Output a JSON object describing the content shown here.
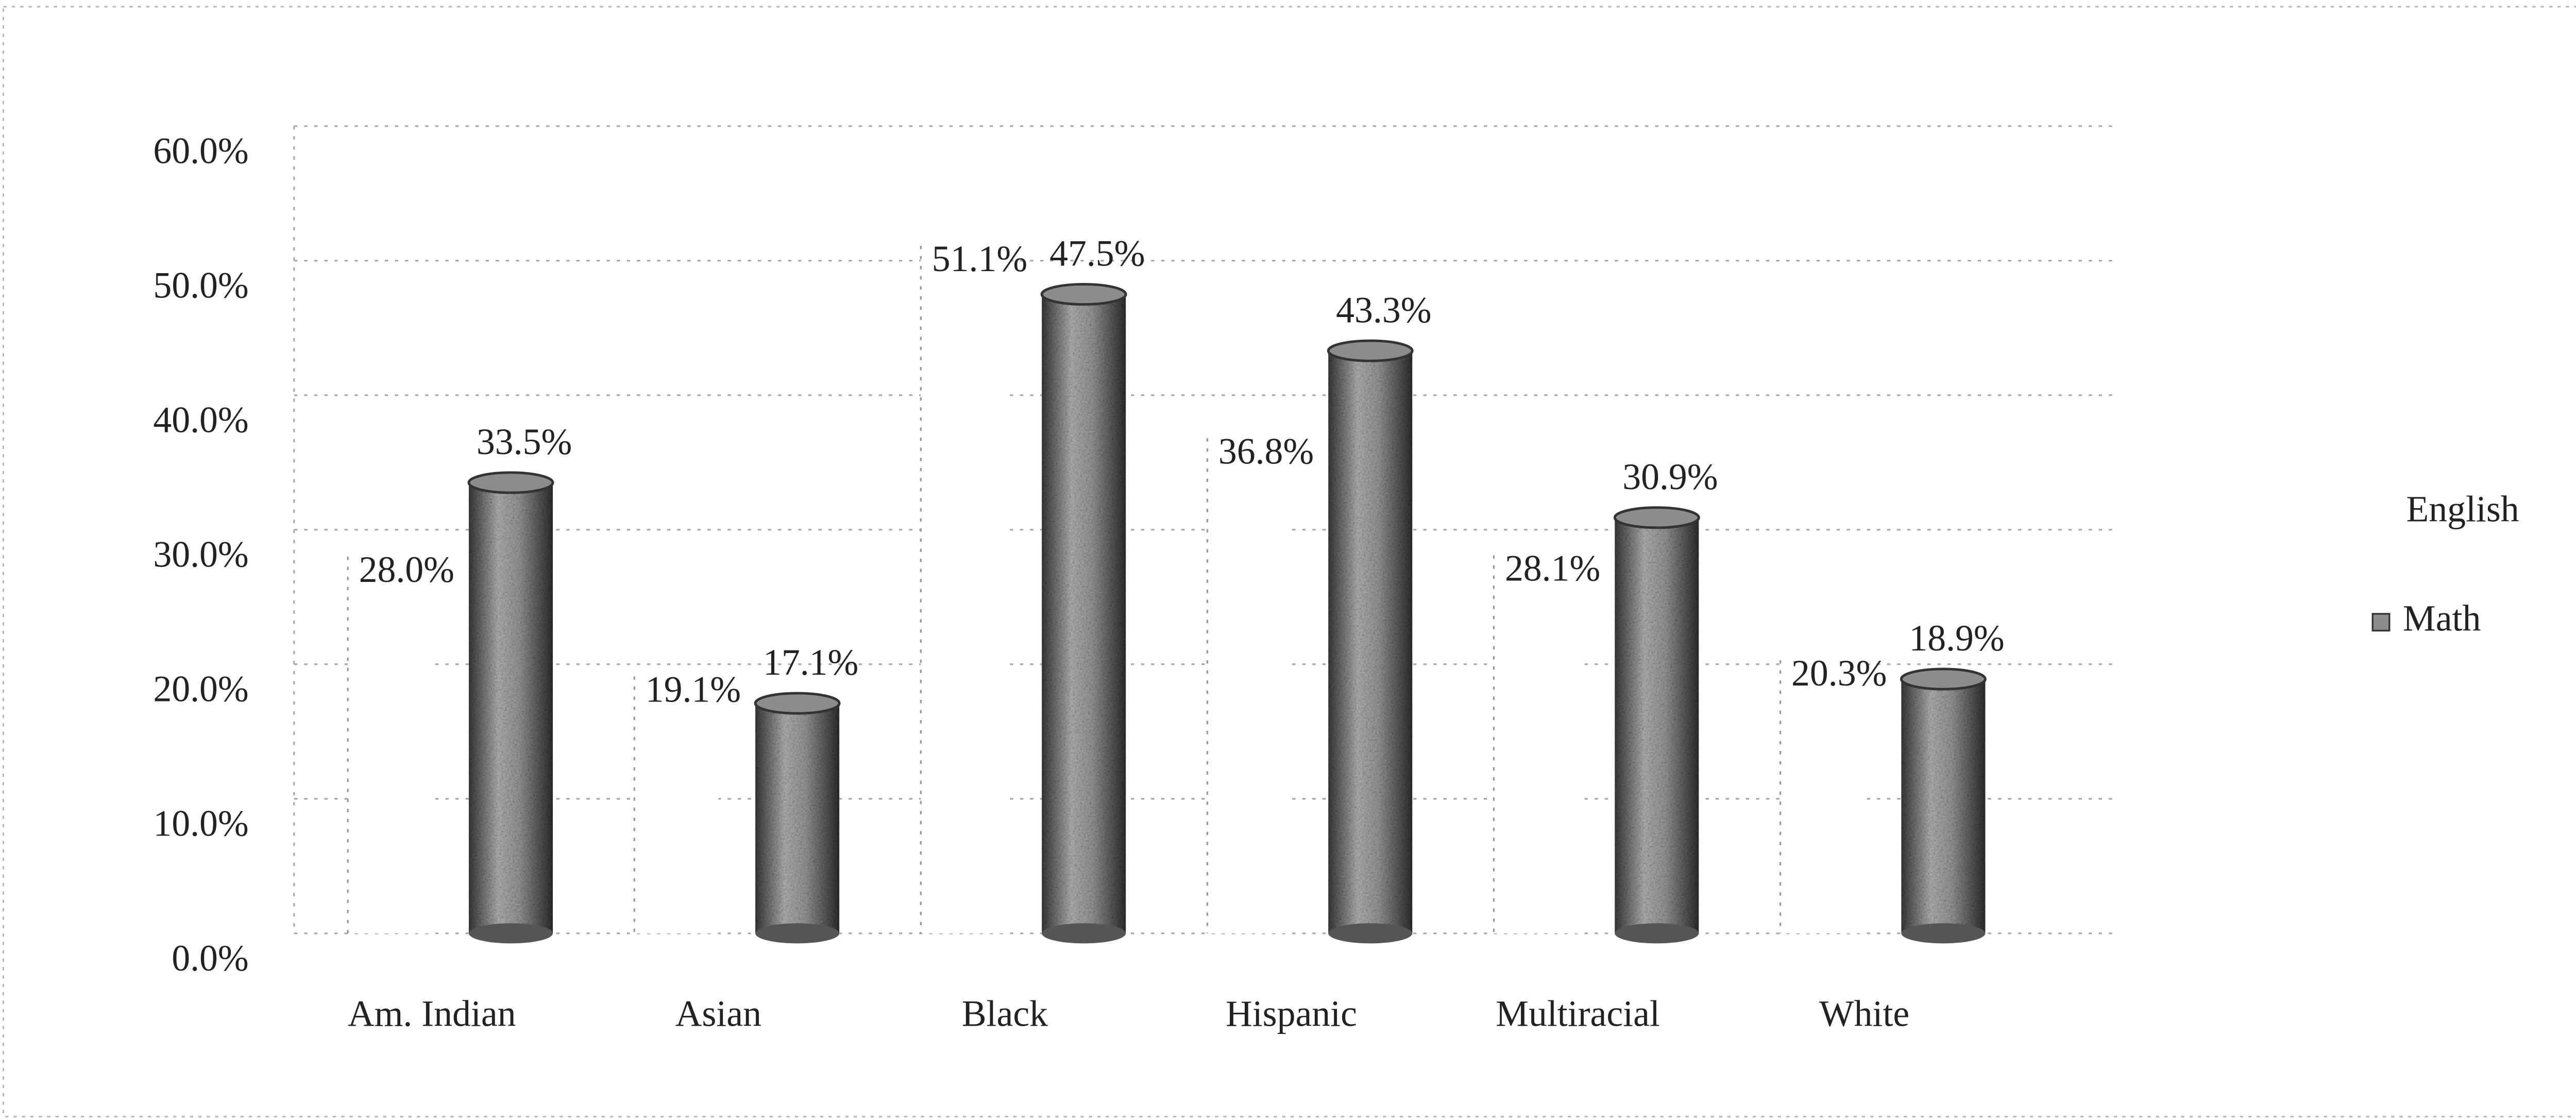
{
  "chart_data": {
    "type": "bar",
    "categories": [
      "Am. Indian",
      "Asian",
      "Black",
      "Hispanic",
      "Multiracial",
      "White"
    ],
    "series": [
      {
        "name": "English",
        "color": "#ffffff",
        "values": [
          28.0,
          19.1,
          51.1,
          36.8,
          28.1,
          20.3
        ],
        "value_labels": [
          "28.0%",
          "19.1%",
          "51.1%",
          "36.8%",
          "28.1%",
          "20.3%"
        ]
      },
      {
        "name": "Math",
        "color": "#8c8c8c",
        "values": [
          33.5,
          17.1,
          47.5,
          43.3,
          30.9,
          18.9
        ],
        "value_labels": [
          "33.5%",
          "17.1%",
          "47.5%",
          "43.3%",
          "30.9%",
          "18.9%"
        ]
      }
    ],
    "ylim": [
      0,
      60
    ],
    "yticks": [
      {
        "value": 0,
        "label": "0.0%"
      },
      {
        "value": 10,
        "label": "10.0%"
      },
      {
        "value": 20,
        "label": "20.0%"
      },
      {
        "value": 30,
        "label": "30.0%"
      },
      {
        "value": 40,
        "label": "40.0%"
      },
      {
        "value": 50,
        "label": "50.0%"
      },
      {
        "value": 60,
        "label": "60.0%"
      }
    ],
    "grid": true,
    "legend": "right"
  }
}
